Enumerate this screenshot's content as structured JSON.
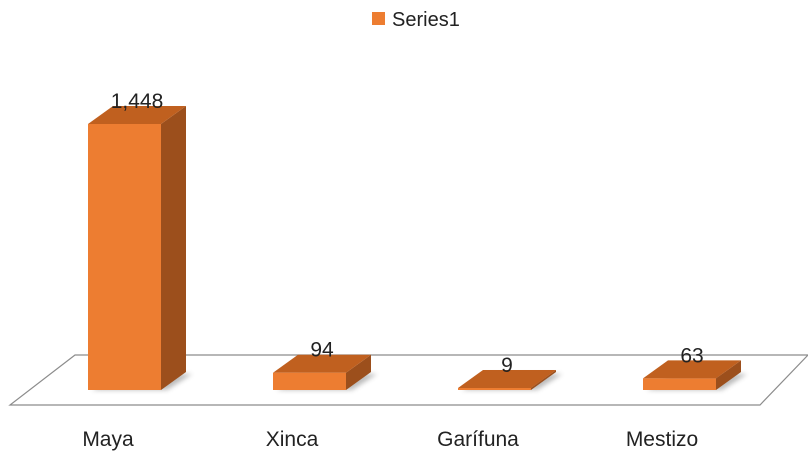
{
  "chart_data": {
    "type": "bar",
    "style": "3d-column",
    "categories": [
      "Maya",
      "Xinca",
      "Garífuna",
      "Mestizo"
    ],
    "series": [
      {
        "name": "Series1",
        "values": [
          1448,
          94,
          9,
          63
        ],
        "data_labels": [
          "1,448",
          "94",
          "9",
          "63"
        ]
      }
    ],
    "legend": "top-center",
    "grid": false,
    "ylim": [
      0,
      1448
    ]
  },
  "colors": {
    "bar_front": "#ED7D31",
    "bar_side": "#9C4F1C",
    "bar_top": "#C0601F",
    "floor_fill": "#FFFFFF",
    "floor_stroke": "#8C8C8C"
  }
}
